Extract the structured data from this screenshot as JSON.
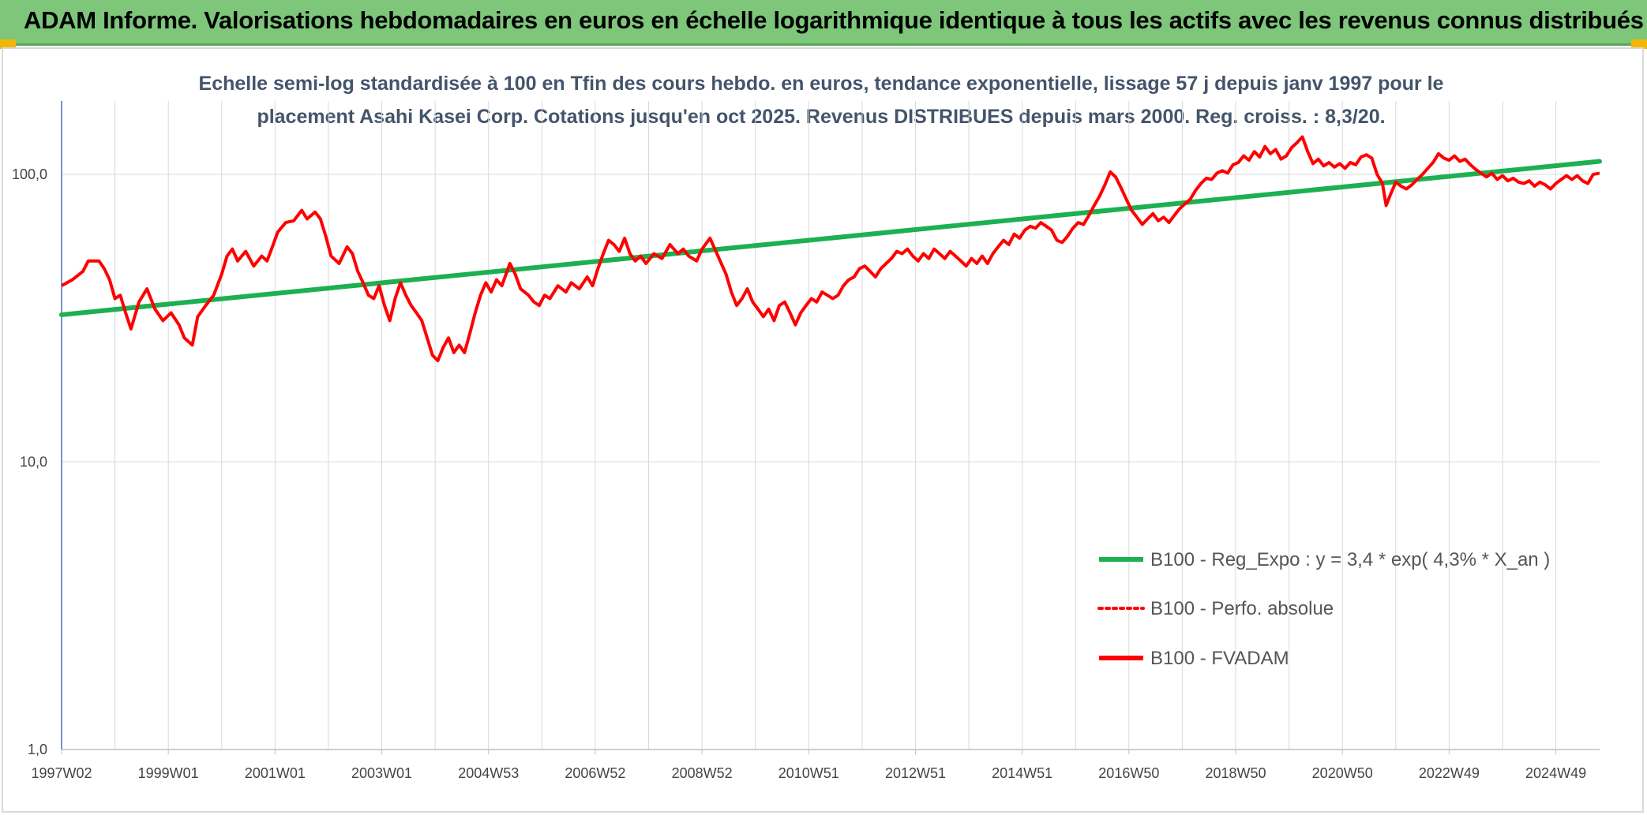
{
  "header": {
    "title": "ADAM Informe. Valorisations hebdomadaires en euros en échelle logarithmique identique à tous les actifs avec les revenus connus distribués"
  },
  "chart_data": {
    "type": "line",
    "title_line1": "Echelle semi-log standardisée à 100 en Tfin des cours hebdo. en euros, tendance exponentielle, lissage 57 j depuis janv 1997 pour le",
    "title_line2": "placement Asahi Kasei Corp. Cotations jusqu'en oct 2025. Revenus DISTRIBUES depuis mars 2000. Reg. croiss. : 8,3/20.",
    "y_scale": "log",
    "ylim": [
      1,
      180
    ],
    "y_ticks": [
      {
        "value": 1,
        "label": "1,0"
      },
      {
        "value": 10,
        "label": "10,0"
      },
      {
        "value": 100,
        "label": "100,0"
      }
    ],
    "xlim": [
      1997.0,
      2025.82
    ],
    "x_ticks": [
      {
        "value": 1997.0,
        "label": "1997W02"
      },
      {
        "value": 1999.0,
        "label": "1999W01"
      },
      {
        "value": 2001.0,
        "label": "2001W01"
      },
      {
        "value": 2003.0,
        "label": "2003W01"
      },
      {
        "value": 2005.0,
        "label": "2004W53"
      },
      {
        "value": 2007.0,
        "label": "2006W52"
      },
      {
        "value": 2009.0,
        "label": "2008W52"
      },
      {
        "value": 2011.0,
        "label": "2010W51"
      },
      {
        "value": 2013.0,
        "label": "2012W51"
      },
      {
        "value": 2015.0,
        "label": "2014W51"
      },
      {
        "value": 2017.0,
        "label": "2016W50"
      },
      {
        "value": 2019.0,
        "label": "2018W50"
      },
      {
        "value": 2021.0,
        "label": "2020W50"
      },
      {
        "value": 2023.0,
        "label": "2022W49"
      },
      {
        "value": 2025.0,
        "label": "2024W49"
      }
    ],
    "grid": "vertical and horizontal",
    "legend_position": "bottom-right",
    "series": [
      {
        "name": "B100 - Reg_Expo : y = 3,4 * exp( 4,3% *  X_an )",
        "color": "#1db050",
        "style": "solid",
        "points": [
          [
            1997.0,
            32.5
          ],
          [
            2025.82,
            111
          ]
        ]
      },
      {
        "name": "B100 - Perfo. absolue",
        "color": "#ff0000",
        "style": "dotted",
        "points": []
      },
      {
        "name": "B100 - FVADAM",
        "color": "#ff0000",
        "style": "solid",
        "points": [
          [
            1997.0,
            41
          ],
          [
            1997.2,
            43
          ],
          [
            1997.4,
            46
          ],
          [
            1997.5,
            50
          ],
          [
            1997.7,
            50
          ],
          [
            1997.8,
            47
          ],
          [
            1997.9,
            43
          ],
          [
            1998.0,
            37
          ],
          [
            1998.1,
            38
          ],
          [
            1998.2,
            33
          ],
          [
            1998.3,
            29
          ],
          [
            1998.45,
            36
          ],
          [
            1998.6,
            40
          ],
          [
            1998.75,
            34
          ],
          [
            1998.9,
            31
          ],
          [
            1999.05,
            33
          ],
          [
            1999.2,
            30
          ],
          [
            1999.3,
            27
          ],
          [
            1999.45,
            25.5
          ],
          [
            1999.55,
            32
          ],
          [
            1999.7,
            35
          ],
          [
            1999.85,
            38
          ],
          [
            2000.0,
            45
          ],
          [
            2000.1,
            52
          ],
          [
            2000.2,
            55
          ],
          [
            2000.3,
            50
          ],
          [
            2000.45,
            54
          ],
          [
            2000.6,
            48
          ],
          [
            2000.75,
            52
          ],
          [
            2000.85,
            50
          ],
          [
            2000.95,
            56
          ],
          [
            2001.05,
            63
          ],
          [
            2001.2,
            68
          ],
          [
            2001.35,
            69
          ],
          [
            2001.5,
            75
          ],
          [
            2001.6,
            70
          ],
          [
            2001.75,
            74
          ],
          [
            2001.85,
            70
          ],
          [
            2001.95,
            61
          ],
          [
            2002.05,
            52
          ],
          [
            2002.2,
            49
          ],
          [
            2002.35,
            56
          ],
          [
            2002.45,
            53
          ],
          [
            2002.55,
            46
          ],
          [
            2002.65,
            42
          ],
          [
            2002.75,
            38
          ],
          [
            2002.85,
            37
          ],
          [
            2002.95,
            41
          ],
          [
            2003.05,
            35
          ],
          [
            2003.15,
            31
          ],
          [
            2003.25,
            37
          ],
          [
            2003.35,
            42
          ],
          [
            2003.45,
            38
          ],
          [
            2003.55,
            35
          ],
          [
            2003.65,
            33
          ],
          [
            2003.75,
            31
          ],
          [
            2003.85,
            27
          ],
          [
            2003.95,
            23.5
          ],
          [
            2004.05,
            22.5
          ],
          [
            2004.15,
            25
          ],
          [
            2004.25,
            27
          ],
          [
            2004.35,
            24
          ],
          [
            2004.45,
            25.5
          ],
          [
            2004.55,
            24
          ],
          [
            2004.65,
            28
          ],
          [
            2004.75,
            33
          ],
          [
            2004.85,
            38
          ],
          [
            2004.95,
            42
          ],
          [
            2005.05,
            39
          ],
          [
            2005.15,
            43
          ],
          [
            2005.25,
            41
          ],
          [
            2005.4,
            49
          ],
          [
            2005.5,
            45
          ],
          [
            2005.6,
            40
          ],
          [
            2005.75,
            38
          ],
          [
            2005.85,
            36
          ],
          [
            2005.95,
            35
          ],
          [
            2006.05,
            38
          ],
          [
            2006.15,
            37
          ],
          [
            2006.3,
            41
          ],
          [
            2006.45,
            39
          ],
          [
            2006.55,
            42
          ],
          [
            2006.7,
            40
          ],
          [
            2006.85,
            44
          ],
          [
            2006.95,
            41
          ],
          [
            2007.05,
            47
          ],
          [
            2007.15,
            53
          ],
          [
            2007.25,
            59
          ],
          [
            2007.35,
            57
          ],
          [
            2007.45,
            54
          ],
          [
            2007.55,
            60
          ],
          [
            2007.65,
            53
          ],
          [
            2007.75,
            50
          ],
          [
            2007.85,
            52
          ],
          [
            2007.95,
            49
          ],
          [
            2008.1,
            53
          ],
          [
            2008.25,
            51
          ],
          [
            2008.4,
            57
          ],
          [
            2008.55,
            53
          ],
          [
            2008.65,
            55
          ],
          [
            2008.75,
            52
          ],
          [
            2008.9,
            50
          ],
          [
            2009.0,
            55
          ],
          [
            2009.15,
            60
          ],
          [
            2009.3,
            52
          ],
          [
            2009.45,
            45
          ],
          [
            2009.55,
            39
          ],
          [
            2009.65,
            35
          ],
          [
            2009.75,
            37
          ],
          [
            2009.85,
            40
          ],
          [
            2009.95,
            36
          ],
          [
            2010.05,
            34
          ],
          [
            2010.15,
            32
          ],
          [
            2010.25,
            34
          ],
          [
            2010.35,
            31
          ],
          [
            2010.45,
            35
          ],
          [
            2010.55,
            36
          ],
          [
            2010.65,
            33
          ],
          [
            2010.75,
            30
          ],
          [
            2010.85,
            33
          ],
          [
            2010.95,
            35
          ],
          [
            2011.05,
            37
          ],
          [
            2011.15,
            36
          ],
          [
            2011.25,
            39
          ],
          [
            2011.35,
            38
          ],
          [
            2011.45,
            37
          ],
          [
            2011.55,
            38
          ],
          [
            2011.65,
            41
          ],
          [
            2011.75,
            43
          ],
          [
            2011.85,
            44
          ],
          [
            2011.95,
            47
          ],
          [
            2012.05,
            48
          ],
          [
            2012.15,
            46
          ],
          [
            2012.25,
            44
          ],
          [
            2012.35,
            47
          ],
          [
            2012.45,
            49
          ],
          [
            2012.55,
            51
          ],
          [
            2012.65,
            54
          ],
          [
            2012.75,
            53
          ],
          [
            2012.85,
            55
          ],
          [
            2012.95,
            52
          ],
          [
            2013.05,
            50
          ],
          [
            2013.15,
            53
          ],
          [
            2013.25,
            51
          ],
          [
            2013.35,
            55
          ],
          [
            2013.45,
            53
          ],
          [
            2013.55,
            51
          ],
          [
            2013.65,
            54
          ],
          [
            2013.75,
            52
          ],
          [
            2013.85,
            50
          ],
          [
            2013.95,
            48
          ],
          [
            2014.05,
            51
          ],
          [
            2014.15,
            49
          ],
          [
            2014.25,
            52
          ],
          [
            2014.35,
            49
          ],
          [
            2014.45,
            53
          ],
          [
            2014.55,
            56
          ],
          [
            2014.65,
            59
          ],
          [
            2014.75,
            57
          ],
          [
            2014.85,
            62
          ],
          [
            2014.95,
            60
          ],
          [
            2015.05,
            64
          ],
          [
            2015.15,
            66
          ],
          [
            2015.25,
            65
          ],
          [
            2015.35,
            68
          ],
          [
            2015.45,
            66
          ],
          [
            2015.55,
            64
          ],
          [
            2015.65,
            59
          ],
          [
            2015.75,
            58
          ],
          [
            2015.85,
            61
          ],
          [
            2015.95,
            65
          ],
          [
            2016.05,
            68
          ],
          [
            2016.15,
            67
          ],
          [
            2016.25,
            72
          ],
          [
            2016.35,
            78
          ],
          [
            2016.45,
            84
          ],
          [
            2016.55,
            92
          ],
          [
            2016.65,
            102
          ],
          [
            2016.75,
            98
          ],
          [
            2016.85,
            90
          ],
          [
            2016.95,
            82
          ],
          [
            2017.05,
            75
          ],
          [
            2017.15,
            71
          ],
          [
            2017.25,
            67
          ],
          [
            2017.35,
            70
          ],
          [
            2017.45,
            73
          ],
          [
            2017.55,
            69
          ],
          [
            2017.65,
            71
          ],
          [
            2017.75,
            68
          ],
          [
            2017.85,
            72
          ],
          [
            2017.95,
            76
          ],
          [
            2018.05,
            79
          ],
          [
            2018.15,
            82
          ],
          [
            2018.25,
            88
          ],
          [
            2018.35,
            93
          ],
          [
            2018.45,
            97
          ],
          [
            2018.55,
            96
          ],
          [
            2018.65,
            101
          ],
          [
            2018.75,
            103
          ],
          [
            2018.85,
            101
          ],
          [
            2018.95,
            108
          ],
          [
            2019.05,
            110
          ],
          [
            2019.15,
            116
          ],
          [
            2019.25,
            112
          ],
          [
            2019.35,
            120
          ],
          [
            2019.45,
            115
          ],
          [
            2019.55,
            125
          ],
          [
            2019.65,
            118
          ],
          [
            2019.75,
            122
          ],
          [
            2019.85,
            113
          ],
          [
            2019.95,
            116
          ],
          [
            2020.05,
            124
          ],
          [
            2020.15,
            129
          ],
          [
            2020.25,
            135
          ],
          [
            2020.35,
            120
          ],
          [
            2020.45,
            109
          ],
          [
            2020.55,
            113
          ],
          [
            2020.65,
            107
          ],
          [
            2020.75,
            110
          ],
          [
            2020.85,
            106
          ],
          [
            2020.95,
            109
          ],
          [
            2021.05,
            105
          ],
          [
            2021.15,
            110
          ],
          [
            2021.25,
            108
          ],
          [
            2021.35,
            115
          ],
          [
            2021.45,
            117
          ],
          [
            2021.55,
            114
          ],
          [
            2021.65,
            100
          ],
          [
            2021.75,
            93
          ],
          [
            2021.82,
            78
          ],
          [
            2021.9,
            85
          ],
          [
            2022.0,
            94
          ],
          [
            2022.1,
            91
          ],
          [
            2022.2,
            89
          ],
          [
            2022.3,
            92
          ],
          [
            2022.4,
            96
          ],
          [
            2022.5,
            100
          ],
          [
            2022.6,
            105
          ],
          [
            2022.7,
            110
          ],
          [
            2022.8,
            118
          ],
          [
            2022.9,
            114
          ],
          [
            2023.0,
            112
          ],
          [
            2023.1,
            116
          ],
          [
            2023.2,
            111
          ],
          [
            2023.3,
            113
          ],
          [
            2023.4,
            108
          ],
          [
            2023.5,
            104
          ],
          [
            2023.6,
            101
          ],
          [
            2023.7,
            98
          ],
          [
            2023.8,
            101
          ],
          [
            2023.9,
            96
          ],
          [
            2024.0,
            99
          ],
          [
            2024.1,
            95
          ],
          [
            2024.2,
            97
          ],
          [
            2024.3,
            94
          ],
          [
            2024.4,
            93
          ],
          [
            2024.5,
            95
          ],
          [
            2024.6,
            91
          ],
          [
            2024.7,
            94
          ],
          [
            2024.8,
            92
          ],
          [
            2024.9,
            89
          ],
          [
            2025.0,
            93
          ],
          [
            2025.1,
            96
          ],
          [
            2025.2,
            99
          ],
          [
            2025.3,
            96
          ],
          [
            2025.4,
            99
          ],
          [
            2025.5,
            95
          ],
          [
            2025.6,
            93
          ],
          [
            2025.7,
            100
          ],
          [
            2025.82,
            101
          ]
        ]
      }
    ]
  }
}
